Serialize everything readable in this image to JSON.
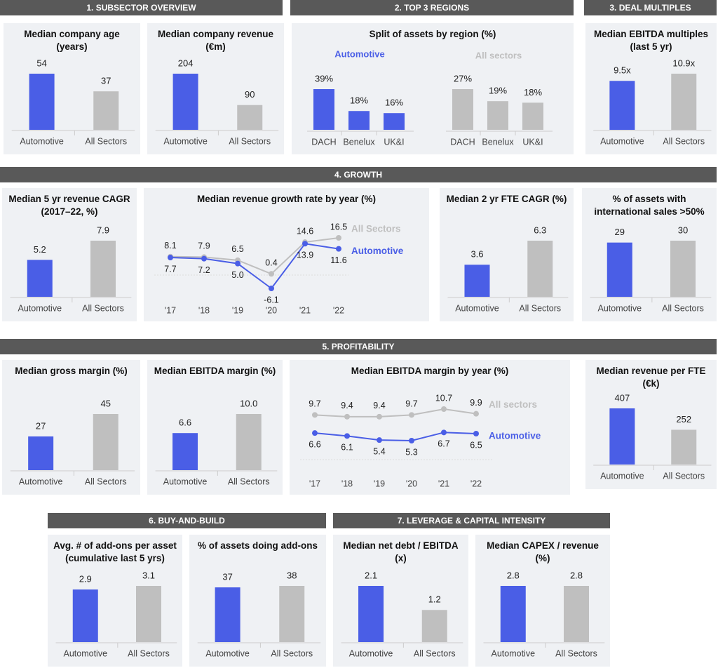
{
  "sections": [
    {
      "title": "1. SUBSECTOR OVERVIEW"
    },
    {
      "title": "2. TOP 3 REGIONS"
    },
    {
      "title": "3. DEAL MULTIPLES"
    },
    {
      "title": "4. GROWTH"
    },
    {
      "title": "5.  PROFITABILITY"
    },
    {
      "title": "6. BUY-AND-BUILD"
    },
    {
      "title": "7. LEVERAGE & CAPITAL INTENSITY"
    }
  ],
  "chart_data": [
    {
      "type": "bar",
      "title": "Median company age (years)",
      "categories": [
        "Automotive",
        "All Sectors"
      ],
      "values": [
        54,
        37
      ],
      "colors": [
        "#4a5ee6",
        "#bfbfbf"
      ]
    },
    {
      "type": "bar",
      "title": "Median company revenue (€m)",
      "categories": [
        "Automotive",
        "All Sectors"
      ],
      "values": [
        204,
        90
      ],
      "colors": [
        "#4a5ee6",
        "#bfbfbf"
      ]
    },
    {
      "type": "bar",
      "title": "Split of assets by region (%)",
      "categories": [
        "DACH",
        "Benelux",
        "UK&I"
      ],
      "series": [
        {
          "name": "Automotive",
          "color": "#4a5ee6",
          "values": [
            39,
            18,
            16
          ],
          "value_labels": [
            "39%",
            "18%",
            "16%"
          ]
        },
        {
          "name": "All sectors",
          "color": "#bfbfbf",
          "values": [
            27,
            19,
            18
          ],
          "value_labels": [
            "27%",
            "19%",
            "18%"
          ]
        }
      ]
    },
    {
      "type": "bar",
      "title": "Median EBITDA multiples (last 5 yr)",
      "categories": [
        "Automotive",
        "All Sectors"
      ],
      "values": [
        9.5,
        10.9
      ],
      "value_labels": [
        "9.5x",
        "10.9x"
      ],
      "colors": [
        "#4a5ee6",
        "#bfbfbf"
      ]
    },
    {
      "type": "bar",
      "title": "Median 5 yr revenue CAGR (2017–22, %)",
      "categories": [
        "Automotive",
        "All Sectors"
      ],
      "values": [
        5.2,
        7.9
      ],
      "colors": [
        "#4a5ee6",
        "#bfbfbf"
      ]
    },
    {
      "type": "line",
      "title": "Median revenue growth rate by year (%)",
      "categories": [
        "'17",
        "'18",
        "'19",
        "'20",
        "'21",
        "'22"
      ],
      "series": [
        {
          "name": "All Sectors",
          "color": "#bfbfbf",
          "values": [
            8.1,
            7.9,
            6.5,
            0.4,
            14.6,
            16.5
          ]
        },
        {
          "name": "Automotive",
          "color": "#4a5ee6",
          "values": [
            7.7,
            7.2,
            5.0,
            -6.1,
            13.9,
            11.6
          ],
          "value_labels": [
            "7.7",
            "7.2",
            "5.0",
            "-6.1",
            "13.9",
            "11.6"
          ]
        }
      ]
    },
    {
      "type": "bar",
      "title": "Median 2 yr FTE CAGR (%)",
      "categories": [
        "Automotive",
        "All Sectors"
      ],
      "values": [
        3.6,
        6.3
      ],
      "colors": [
        "#4a5ee6",
        "#bfbfbf"
      ]
    },
    {
      "type": "bar",
      "title": "% of assets with international sales >50%",
      "categories": [
        "Automotive",
        "All Sectors"
      ],
      "values": [
        29,
        30
      ],
      "colors": [
        "#4a5ee6",
        "#bfbfbf"
      ]
    },
    {
      "type": "bar",
      "title": "Median gross margin (%)",
      "categories": [
        "Automotive",
        "All Sectors"
      ],
      "values": [
        27,
        45
      ],
      "colors": [
        "#4a5ee6",
        "#bfbfbf"
      ]
    },
    {
      "type": "bar",
      "title": "Median EBITDA margin (%)",
      "categories": [
        "Automotive",
        "All Sectors"
      ],
      "values": [
        6.6,
        10.0
      ],
      "value_labels": [
        "6.6",
        "10.0"
      ],
      "colors": [
        "#4a5ee6",
        "#bfbfbf"
      ]
    },
    {
      "type": "line",
      "title": "Median EBITDA margin by year (%)",
      "categories": [
        "'17",
        "'18",
        "'19",
        "'20",
        "'21",
        "'22"
      ],
      "series": [
        {
          "name": "All sectors",
          "color": "#bfbfbf",
          "values": [
            9.7,
            9.4,
            9.4,
            9.7,
            10.7,
            9.9
          ]
        },
        {
          "name": "Automotive",
          "color": "#4a5ee6",
          "values": [
            6.6,
            6.1,
            5.4,
            5.3,
            6.7,
            6.5
          ]
        }
      ]
    },
    {
      "type": "bar",
      "title": "Median revenue per FTE (€k)",
      "categories": [
        "Automotive",
        "All Sectors"
      ],
      "values": [
        407,
        252
      ],
      "colors": [
        "#4a5ee6",
        "#bfbfbf"
      ]
    },
    {
      "type": "bar",
      "title": "Avg. # of add-ons per asset (cumulative last 5 yrs)",
      "categories": [
        "Automotive",
        "All Sectors"
      ],
      "values": [
        2.9,
        3.1
      ],
      "colors": [
        "#4a5ee6",
        "#bfbfbf"
      ]
    },
    {
      "type": "bar",
      "title": "% of assets doing add-ons",
      "categories": [
        "Automotive",
        "All Sectors"
      ],
      "values": [
        37,
        38
      ],
      "colors": [
        "#4a5ee6",
        "#bfbfbf"
      ]
    },
    {
      "type": "bar",
      "title": "Median net debt / EBITDA (x)",
      "categories": [
        "Automotive",
        "All Sectors"
      ],
      "values": [
        2.1,
        1.2
      ],
      "colors": [
        "#4a5ee6",
        "#bfbfbf"
      ]
    },
    {
      "type": "bar",
      "title": "Median CAPEX / revenue (%)",
      "categories": [
        "Automotive",
        "All Sectors"
      ],
      "values": [
        2.8,
        2.8
      ],
      "colors": [
        "#4a5ee6",
        "#bfbfbf"
      ]
    }
  ]
}
